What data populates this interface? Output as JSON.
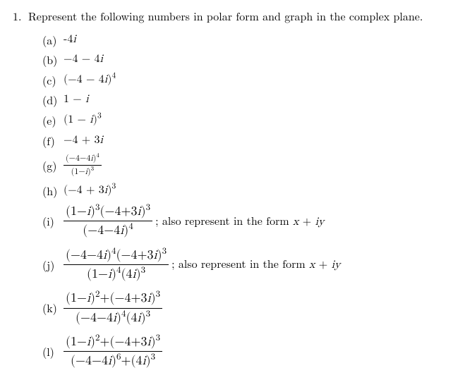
{
  "problem": {
    "number": "1.",
    "intro": "Represent the following numbers in polar form and graph in the complex plane.",
    "trail_text": "; also represent in the form ",
    "xy_x": "x",
    "xy_plus": " + ",
    "xy_i": "i",
    "xy_y": "y",
    "items": {
      "a": {
        "label": "(a)",
        "expr": "-4",
        "i": "i"
      },
      "b": {
        "label": "(b)",
        "expr": "−4 − 4",
        "i": "i"
      },
      "c": {
        "label": "(c)",
        "expr_open": "(−4 − 4",
        "i": "i",
        "expr_close": ")",
        "pow": "4"
      },
      "d": {
        "label": "(d)",
        "expr": "1 − ",
        "i": "i"
      },
      "e": {
        "label": "(e)",
        "expr_open": "(1 − ",
        "i": "i",
        "expr_close": ")",
        "pow": "3"
      },
      "f": {
        "label": "(f)",
        "expr": "−4 + 3",
        "i": "i"
      },
      "g": {
        "label": "(g)",
        "num_open": "(−4−4",
        "num_i": "i",
        "num_close": ")",
        "num_pow": "4",
        "den_open": "(1−",
        "den_i": "i",
        "den_close": ")",
        "den_pow": "3"
      },
      "h": {
        "label": "(h)",
        "expr_open": "(−4 + 3",
        "i": "i",
        "expr_close": ")",
        "pow": "3"
      },
      "i_": {
        "label": "(i)",
        "n1_open": "(1−",
        "n1_i": "i",
        "n1_close": ")",
        "n1_pow": "3",
        "n2_open": "(−4+3",
        "n2_i": "i",
        "n2_close": ")",
        "n2_pow": "3",
        "d_open": "(−4−4",
        "d_i": "i",
        "d_close": ")",
        "d_pow": "4"
      },
      "j": {
        "label": "(j)",
        "n1_open": "(−4−4",
        "n1_i": "i",
        "n1_close": ")",
        "n1_pow": "4",
        "n2_open": "(−4+3",
        "n2_i": "i",
        "n2_close": ")",
        "n2_pow": "3",
        "d1_open": "(1−",
        "d1_i": "i",
        "d1_close": ")",
        "d1_pow": "4",
        "d2_open": "(4",
        "d2_i": "i",
        "d2_close": ")",
        "d2_pow": "3"
      },
      "k": {
        "label": "(k)",
        "n1_open": "(1−",
        "n1_i": "i",
        "n1_close": ")",
        "n1_pow": "2",
        "plus": "+",
        "n2_open": "(−4+3",
        "n2_i": "i",
        "n2_close": ")",
        "n2_pow": "3",
        "d1_open": "(−4−4",
        "d1_i": "i",
        "d1_close": ")",
        "d1_pow": "4",
        "d2_open": "(4",
        "d2_i": "i",
        "d2_close": ")",
        "d2_pow": "3"
      },
      "l": {
        "label": "(l)",
        "n1_open": "(1−",
        "n1_i": "i",
        "n1_close": ")",
        "n1_pow": "2",
        "plus1": "+",
        "n2_open": "(−4+3",
        "n2_i": "i",
        "n2_close": ")",
        "n2_pow": "3",
        "d1_open": "(−4−4",
        "d1_i": "i",
        "d1_close": ")",
        "d1_pow": "6",
        "plus2": "+",
        "d2_open": "(4",
        "d2_i": "i",
        "d2_close": ")",
        "d2_pow": "3"
      }
    }
  }
}
